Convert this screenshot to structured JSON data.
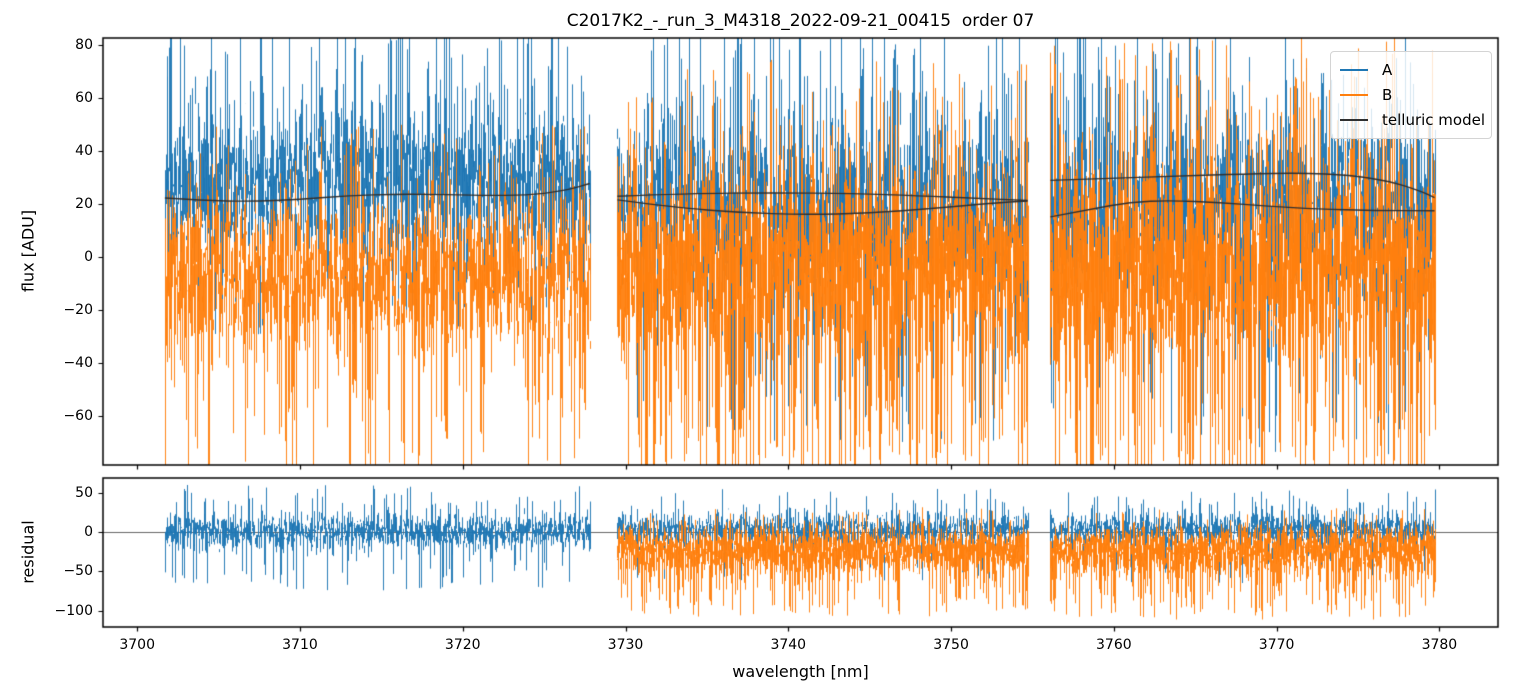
{
  "chart_data": {
    "type": "line",
    "title": "C2017K2_-_run_3_M4318_2022-09-21_00415  order 07",
    "xlabel": "wavelength [nm]",
    "xlim": [
      3697.9,
      3783.6
    ],
    "x_ticks": [
      {
        "v": 3700,
        "label": "3700"
      },
      {
        "v": 3710,
        "label": "3710"
      },
      {
        "v": 3720,
        "label": "3720"
      },
      {
        "v": 3730,
        "label": "3730"
      },
      {
        "v": 3740,
        "label": "3740"
      },
      {
        "v": 3750,
        "label": "3750"
      },
      {
        "v": 3760,
        "label": "3760"
      },
      {
        "v": 3770,
        "label": "3770"
      },
      {
        "v": 3780,
        "label": "3780"
      }
    ],
    "colors": {
      "A": "#1f77b4",
      "B": "#ff7f0e",
      "telluric": "#2f2f2f"
    },
    "grid": false,
    "legend": {
      "position": "upper right",
      "entries": [
        {
          "label": "A",
          "color": "#1f77b4"
        },
        {
          "label": "B",
          "color": "#ff7f0e"
        },
        {
          "label": "telluric model",
          "color": "#2f2f2f"
        }
      ]
    },
    "panels": [
      {
        "name": "flux",
        "ylabel": "flux [ADU]",
        "ylim": [
          -78.6,
          82.8
        ],
        "y_ticks": [
          {
            "v": 80,
            "label": "80"
          },
          {
            "v": 60,
            "label": "60"
          },
          {
            "v": 40,
            "label": "40"
          },
          {
            "v": 20,
            "label": "20"
          },
          {
            "v": 0,
            "label": "0"
          },
          {
            "v": -20,
            "label": "−20"
          },
          {
            "v": -40,
            "label": "−40"
          },
          {
            "v": -60,
            "label": "−60"
          }
        ],
        "segments": [
          {
            "x_range": [
              3701.7,
              3727.8
            ],
            "A": {
              "center": 28,
              "sigma": 15,
              "density": 2,
              "spike_up": {
                "p": 0.09,
                "reach": [
                  58,
                  96
                ]
              },
              "spike_down": {
                "p": 0.05,
                "reach": [
                  -8,
                  -30
                ]
              }
            },
            "B": {
              "center": -7,
              "sigma": 16,
              "density": 2,
              "spike_up": {
                "p": 0.05,
                "reach": [
                  28,
                  50
                ]
              },
              "spike_down": {
                "p": 0.11,
                "reach": [
                  -48,
                  -88
                ]
              }
            },
            "telluric_curves": [
              [
                [
                  3701.7,
                  22.3
                ],
                [
                  3704,
                  21.4
                ],
                [
                  3707,
                  21.0
                ],
                [
                  3710,
                  21.8
                ],
                [
                  3713,
                  23.2
                ],
                [
                  3716,
                  23.8
                ],
                [
                  3719,
                  23.6
                ],
                [
                  3722,
                  23.2
                ],
                [
                  3724.5,
                  23.6
                ],
                [
                  3726.5,
                  25.5
                ],
                [
                  3727.8,
                  27.8
                ]
              ]
            ]
          },
          {
            "x_range": [
              3729.5,
              3754.7
            ],
            "A": {
              "center": 19,
              "sigma": 17,
              "density": 2,
              "spike_up": {
                "p": 0.08,
                "reach": [
                  58,
                  96
                ]
              },
              "spike_down": {
                "p": 0.07,
                "reach": [
                  -30,
                  -70
                ]
              }
            },
            "B": {
              "center": -3,
              "sigma": 19,
              "density": 3,
              "spike_up": {
                "p": 0.06,
                "reach": [
                  38,
                  75
                ]
              },
              "spike_down": {
                "p": 0.12,
                "reach": [
                  -52,
                  -92
                ]
              }
            },
            "telluric_curves": [
              [
                [
                  3729.5,
                  23.0
                ],
                [
                  3734,
                  24.0
                ],
                [
                  3739,
                  24.3
                ],
                [
                  3744,
                  24.0
                ],
                [
                  3748,
                  23.2
                ],
                [
                  3751.5,
                  22.2
                ],
                [
                  3754.7,
                  21.4
                ]
              ],
              [
                [
                  3729.5,
                  21.6
                ],
                [
                  3733,
                  18.8
                ],
                [
                  3737,
                  16.8
                ],
                [
                  3741,
                  16.0
                ],
                [
                  3745,
                  16.6
                ],
                [
                  3749,
                  18.4
                ],
                [
                  3752.5,
                  20.4
                ],
                [
                  3754.7,
                  21.2
                ]
              ]
            ]
          },
          {
            "x_range": [
              3756.1,
              3779.7
            ],
            "A": {
              "center": 19,
              "sigma": 18,
              "density": 2,
              "spike_up": {
                "p": 0.08,
                "reach": [
                  58,
                  96
                ]
              },
              "spike_down": {
                "p": 0.08,
                "reach": [
                  -35,
                  -75
                ]
              }
            },
            "B": {
              "center": -3,
              "sigma": 21,
              "density": 3,
              "spike_up": {
                "p": 0.07,
                "reach": [
                  42,
                  85
                ]
              },
              "spike_down": {
                "p": 0.13,
                "reach": [
                  -55,
                  -95
                ]
              }
            },
            "telluric_curves": [
              [
                [
                  3756.1,
                  29.0
                ],
                [
                  3760,
                  29.8
                ],
                [
                  3764,
                  30.6
                ],
                [
                  3768,
                  31.4
                ],
                [
                  3771.5,
                  31.8
                ],
                [
                  3774.5,
                  31.0
                ],
                [
                  3777,
                  28.6
                ],
                [
                  3778.8,
                  25.0
                ],
                [
                  3779.7,
                  22.5
                ]
              ],
              [
                [
                  3756.1,
                  15.2
                ],
                [
                  3758.5,
                  18.0
                ],
                [
                  3761,
                  20.8
                ],
                [
                  3763.5,
                  21.4
                ],
                [
                  3766.5,
                  20.6
                ],
                [
                  3769.5,
                  19.2
                ],
                [
                  3772.5,
                  18.2
                ],
                [
                  3776,
                  17.6
                ],
                [
                  3779.7,
                  17.5
                ]
              ]
            ]
          }
        ]
      },
      {
        "name": "residual",
        "ylabel": "residual",
        "ylim": [
          -120.9,
          68.7
        ],
        "y_ticks": [
          {
            "v": 50,
            "label": "50"
          },
          {
            "v": 0,
            "label": "0"
          },
          {
            "v": -50,
            "label": "−50"
          },
          {
            "v": -100,
            "label": "−100"
          }
        ],
        "zero_line": true,
        "segments": [
          {
            "x_range": [
              3701.7,
              3727.8
            ],
            "A": {
              "center": 0,
              "sigma": 11,
              "density": 2,
              "spike_up": {
                "p": 0.05,
                "reach": [
                  25,
                  60
                ]
              },
              "spike_down": {
                "p": 0.06,
                "reach": [
                  -28,
                  -75
                ]
              }
            },
            "B": null,
            "telluric_curves": []
          },
          {
            "x_range": [
              3729.5,
              3754.7
            ],
            "A": {
              "center": 2,
              "sigma": 11,
              "density": 2,
              "spike_up": {
                "p": 0.05,
                "reach": [
                  22,
                  55
                ]
              },
              "spike_down": {
                "p": 0.05,
                "reach": [
                  -28,
                  -65
                ]
              }
            },
            "B": {
              "center": -24,
              "sigma": 15,
              "density": 3,
              "spike_up": {
                "p": 0.04,
                "reach": [
                  2,
                  30
                ]
              },
              "spike_down": {
                "p": 0.11,
                "reach": [
                  -58,
                  -108
                ]
              }
            },
            "telluric_curves": []
          },
          {
            "x_range": [
              3756.1,
              3779.7
            ],
            "A": {
              "center": 2,
              "sigma": 11,
              "density": 2,
              "spike_up": {
                "p": 0.05,
                "reach": [
                  22,
                  55
                ]
              },
              "spike_down": {
                "p": 0.05,
                "reach": [
                  -28,
                  -65
                ]
              }
            },
            "B": {
              "center": -24,
              "sigma": 16,
              "density": 3,
              "spike_up": {
                "p": 0.04,
                "reach": [
                  2,
                  32
                ]
              },
              "spike_down": {
                "p": 0.12,
                "reach": [
                  -58,
                  -112
                ]
              }
            },
            "telluric_curves": []
          }
        ]
      }
    ]
  }
}
